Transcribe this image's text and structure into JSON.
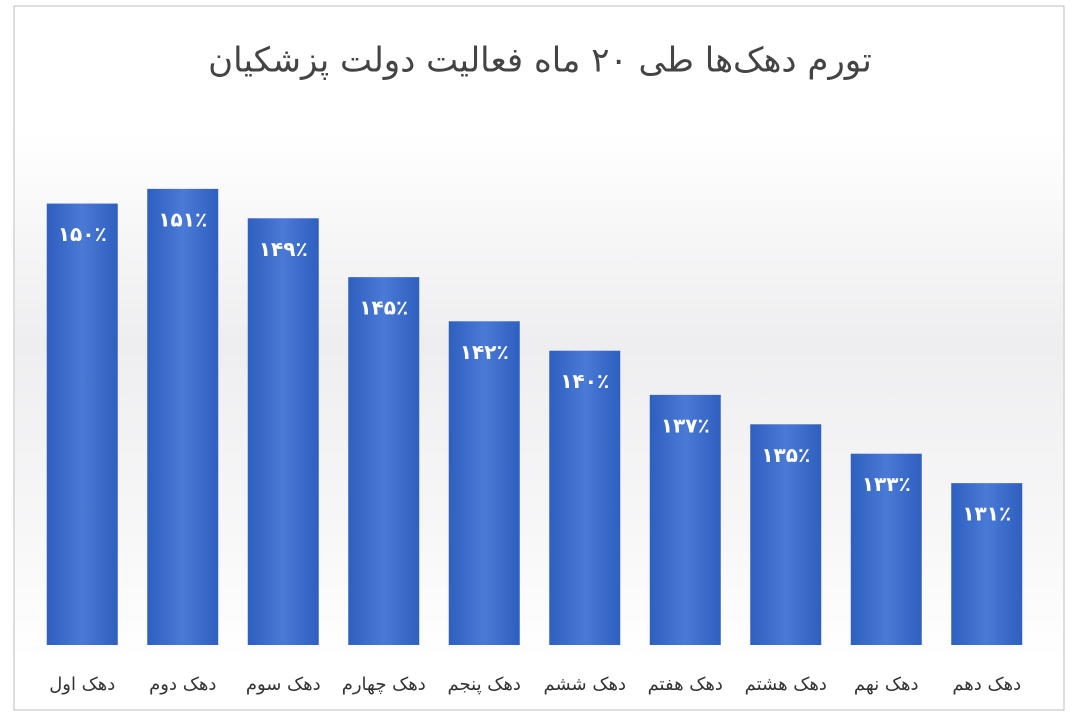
{
  "chart_data": {
    "type": "bar",
    "title": "تورم دهک‌ها طی ۲۰ ماه فعالیت دولت پزشکیان",
    "categories": [
      "دهک اول",
      "دهک دوم",
      "دهک سوم",
      "دهک چهارم",
      "دهک پنجم",
      "دهک ششم",
      "دهک هفتم",
      "دهک هشتم",
      "دهک نهم",
      "دهک دهم"
    ],
    "values": [
      150,
      151,
      149,
      145,
      142,
      140,
      137,
      135,
      133,
      131
    ],
    "value_labels": [
      "۱۵۰٪",
      "۱۵۱٪",
      "۱۴۹٪",
      "۱۴۵٪",
      "۱۴۲٪",
      "۱۴۰٪",
      "۱۳۷٪",
      "۱۳۵٪",
      "۱۳۳٪",
      "۱۳۱٪"
    ],
    "color": "#3f6fcc",
    "ylim": [
      120,
      155
    ]
  }
}
